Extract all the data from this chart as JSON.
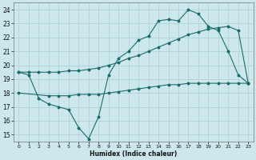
{
  "xlabel": "Humidex (Indice chaleur)",
  "bg_color": "#cce8ec",
  "grid_color": "#aacfd4",
  "line_color": "#1a6b6b",
  "xlim": [
    -0.5,
    23.5
  ],
  "ylim": [
    14.5,
    24.5
  ],
  "xticks": [
    0,
    1,
    2,
    3,
    4,
    5,
    6,
    7,
    8,
    9,
    10,
    11,
    12,
    13,
    14,
    15,
    16,
    17,
    18,
    19,
    20,
    21,
    22,
    23
  ],
  "yticks": [
    15,
    16,
    17,
    18,
    19,
    20,
    21,
    22,
    23,
    24
  ],
  "line1_x": [
    0,
    1,
    2,
    3,
    4,
    5,
    6,
    7,
    8,
    9,
    10,
    11,
    12,
    13,
    14,
    15,
    16,
    17,
    18,
    19,
    20,
    21,
    22,
    23
  ],
  "line1_y": [
    19.5,
    19.3,
    17.6,
    17.2,
    17.0,
    16.8,
    15.5,
    14.7,
    16.3,
    19.3,
    20.5,
    21.0,
    21.8,
    22.1,
    23.2,
    23.3,
    23.2,
    24.0,
    23.7,
    22.8,
    22.5,
    21.0,
    19.3,
    18.7
  ],
  "line2_x": [
    0,
    3,
    4,
    5,
    6,
    7,
    8,
    9,
    10,
    11,
    12,
    13,
    14,
    15,
    16,
    17,
    18,
    19,
    20,
    21,
    22,
    23
  ],
  "line2_y": [
    18.0,
    17.8,
    17.8,
    17.8,
    17.9,
    17.9,
    17.9,
    18.0,
    18.1,
    18.2,
    18.3,
    18.4,
    18.5,
    18.6,
    18.6,
    18.7,
    18.7,
    18.7,
    18.7,
    18.7,
    18.7,
    18.7
  ],
  "line3_x": [
    0,
    1,
    2,
    3,
    4,
    5,
    6,
    7,
    8,
    9,
    10,
    11,
    12,
    13,
    14,
    15,
    16,
    17,
    18,
    19,
    20,
    21,
    22,
    23
  ],
  "line3_y": [
    19.5,
    19.5,
    19.5,
    19.5,
    19.5,
    19.6,
    19.6,
    19.7,
    19.8,
    20.0,
    20.2,
    20.5,
    20.7,
    21.0,
    21.3,
    21.6,
    21.9,
    22.2,
    22.4,
    22.6,
    22.7,
    22.8,
    22.5,
    18.7
  ]
}
